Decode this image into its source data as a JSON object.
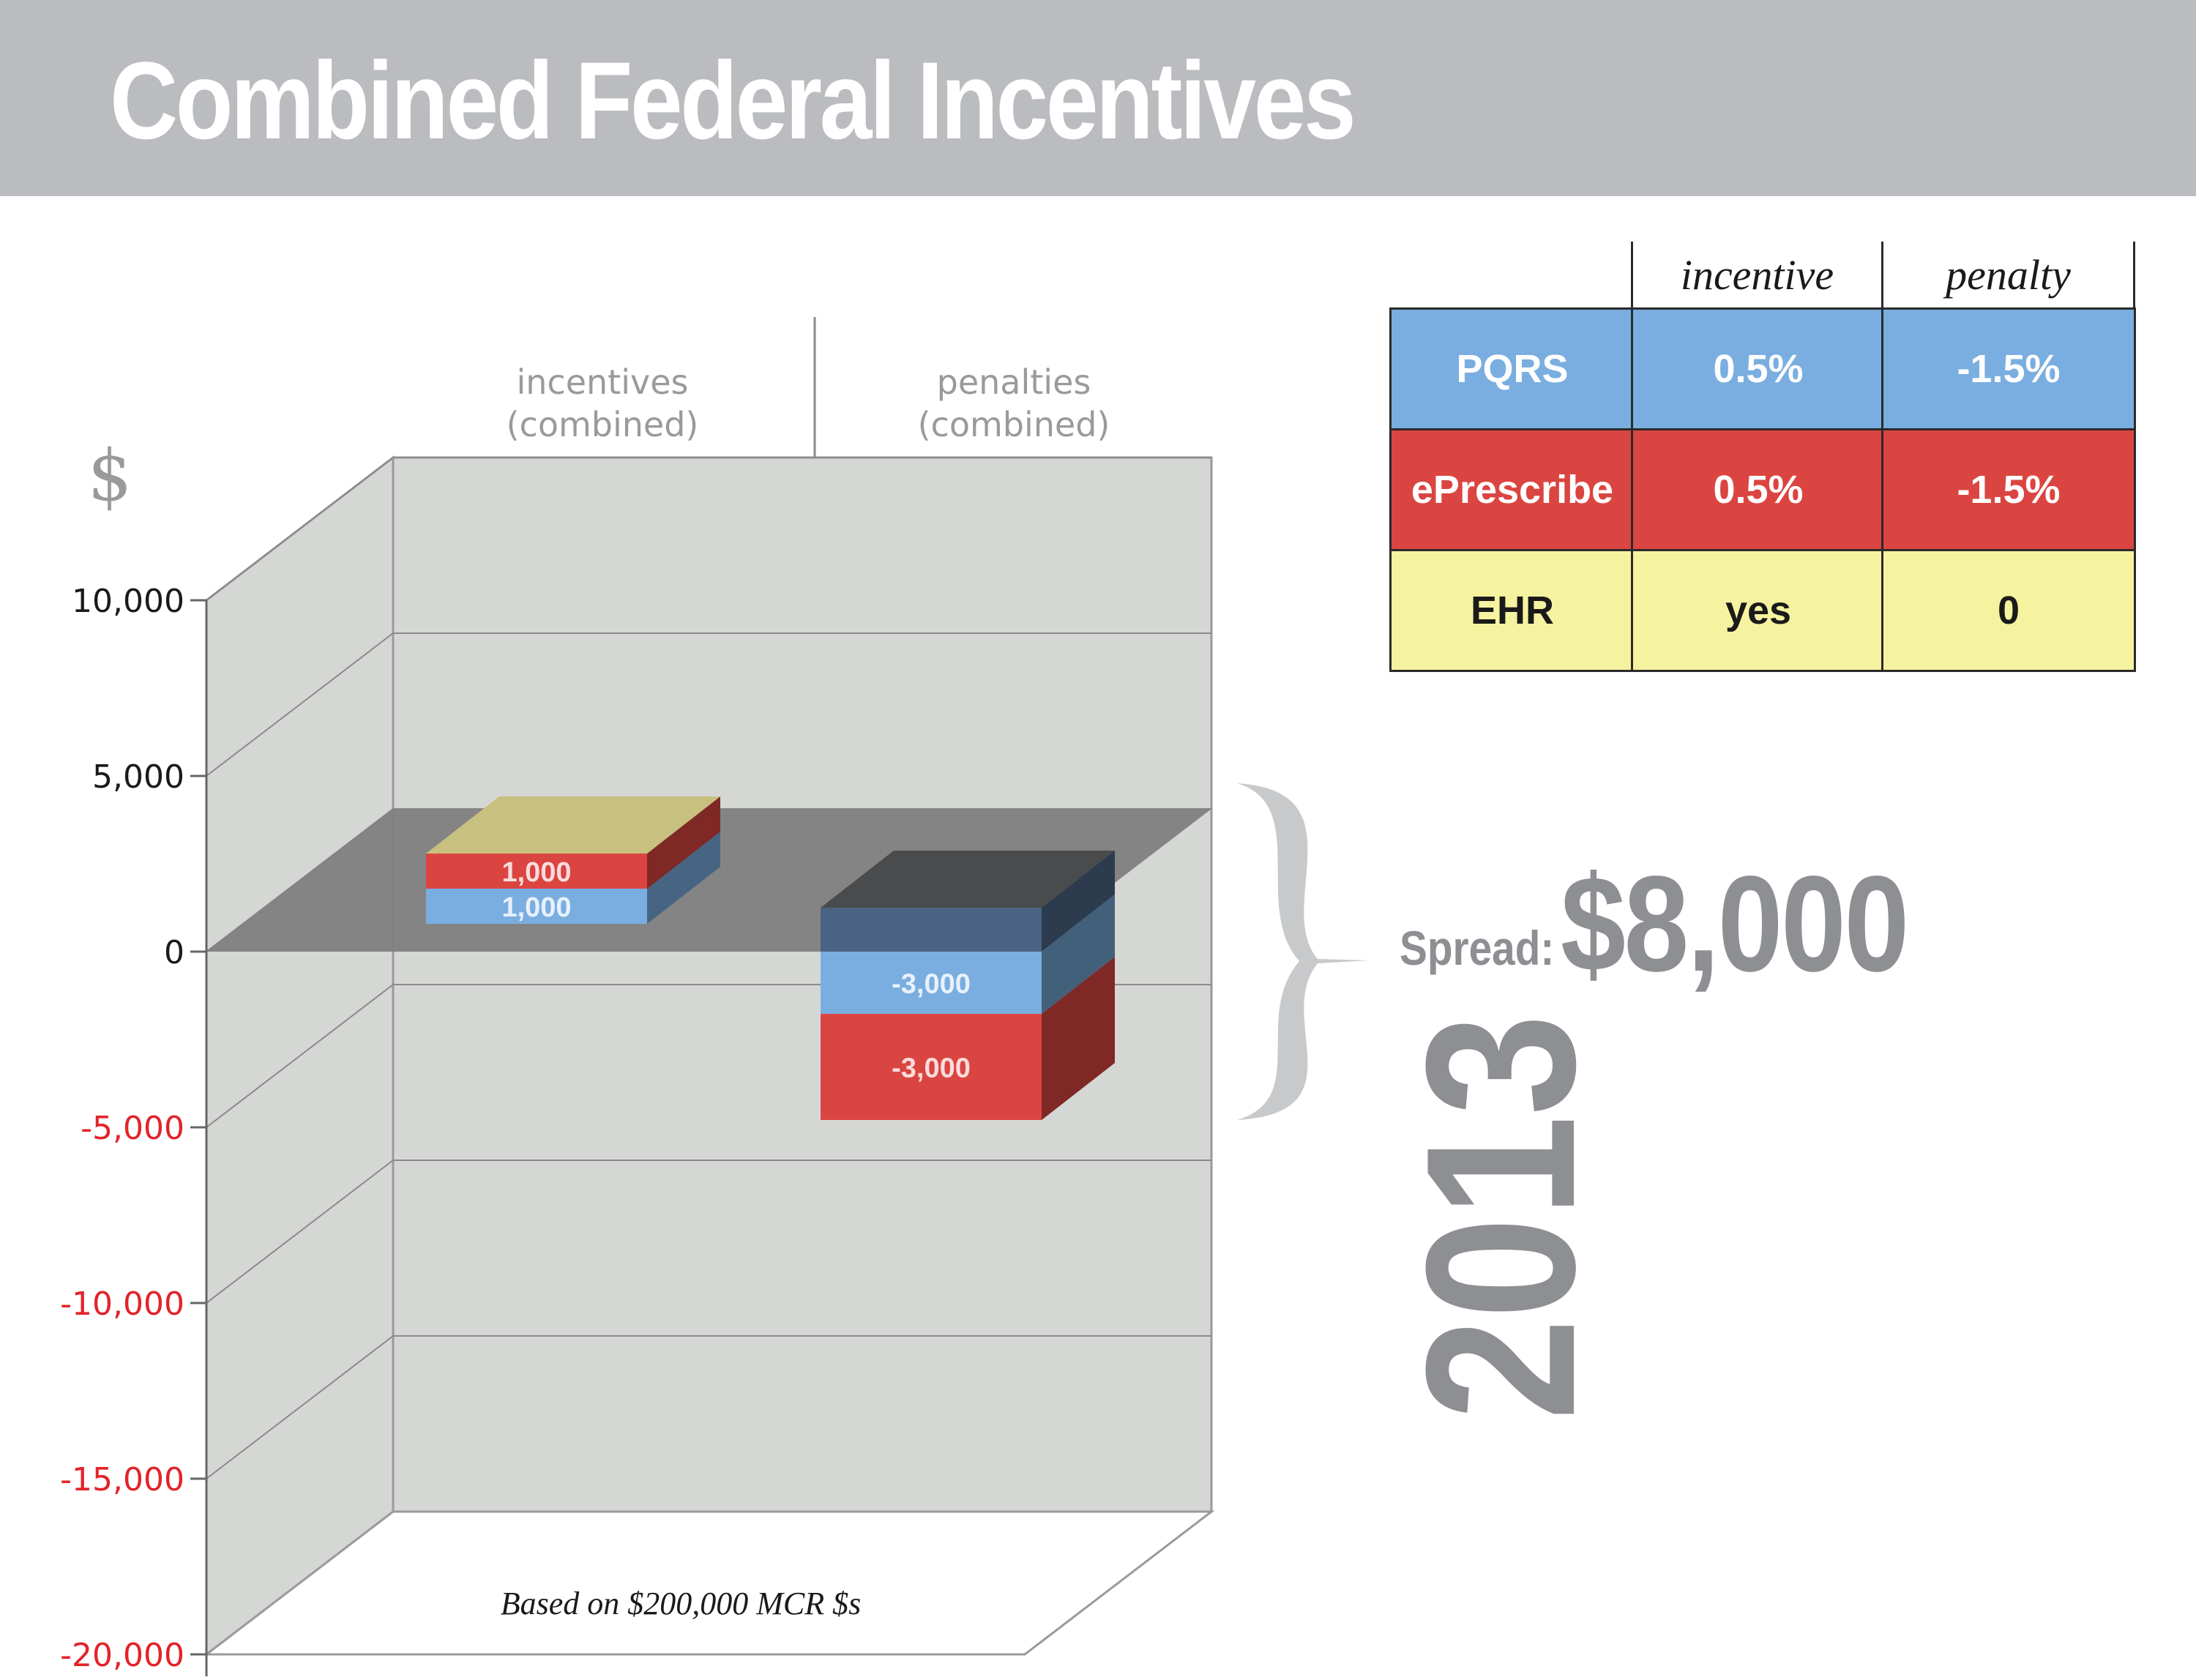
{
  "header": {
    "title": "Combined Federal Incentives"
  },
  "chart_data": {
    "type": "bar",
    "currency_symbol": "$",
    "categories": [
      "incentives\n(combined)",
      "penalties\n(combined)"
    ],
    "category_lines": [
      [
        "incentives",
        "(combined)"
      ],
      [
        "penalties",
        "(combined)"
      ]
    ],
    "yticks": [
      10000,
      5000,
      0,
      -5000,
      -10000,
      -15000,
      -20000
    ],
    "ytick_labels": [
      "10,000",
      "5,000",
      "0",
      "-5,000",
      "-10,000",
      "-15,000",
      "-20,000"
    ],
    "ylim": [
      -20000,
      10000
    ],
    "grid": true,
    "three_d": true,
    "series": [
      {
        "name": "PQRS",
        "color": "#7aaee0",
        "values": [
          1000,
          -3000
        ],
        "labels": [
          "1,000",
          "-3,000"
        ]
      },
      {
        "name": "ePrescribe",
        "color": "#db4541",
        "values": [
          1000,
          -3000
        ],
        "labels": [
          "1,000",
          "-3,000"
        ]
      }
    ],
    "colors": {
      "back_wall": "#d5d7d4",
      "floor": "#ffffff",
      "zero_plane": "#7f7f7f",
      "negative_tick": "#e3232a",
      "positive_tick": "#1a1a1a",
      "category_label": "#9a9a9a",
      "incentive_top": "#c8c07f",
      "penalty_top": "#4a4b4d",
      "penalty_cap_front": "#4a6382"
    },
    "footnote": "Based on $200,000 MCR $s"
  },
  "table": {
    "headers": [
      "incentive",
      "penalty"
    ],
    "rows": [
      {
        "program": "PQRS",
        "incentive": "0.5%",
        "penalty": "-1.5%",
        "bg": "#7aaee0",
        "fg": "#ffffff"
      },
      {
        "program": "ePrescribe",
        "incentive": "0.5%",
        "penalty": "-1.5%",
        "bg": "#db4541",
        "fg": "#ffffff"
      },
      {
        "program": "EHR",
        "incentive": "yes",
        "penalty": "0",
        "bg": "#f6f3a0",
        "fg": "#1a1a1a"
      }
    ]
  },
  "spread": {
    "label": "Spread:",
    "value": "$8,000",
    "year": "2013"
  }
}
